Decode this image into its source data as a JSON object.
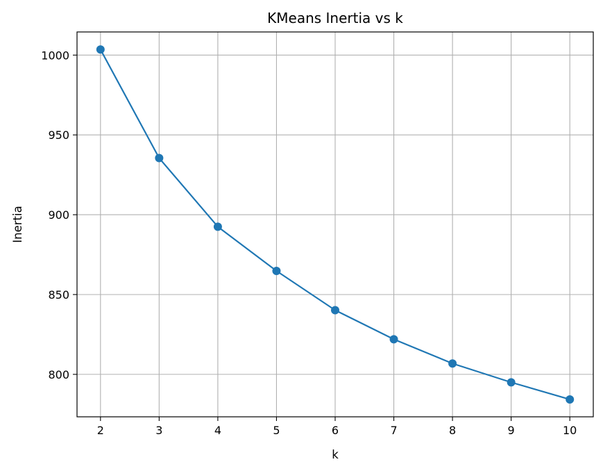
{
  "chart_data": {
    "type": "line",
    "title": "KMeans Inertia vs k",
    "xlabel": "k",
    "ylabel": "Inertia",
    "x": [
      2,
      3,
      4,
      5,
      6,
      7,
      8,
      9,
      10
    ],
    "series": [
      {
        "values": [
          1003.5,
          935.5,
          892.5,
          864.8,
          840.2,
          822.0,
          806.8,
          795.0,
          784.3
        ],
        "color": "#1f77b4",
        "marker": "circle"
      }
    ],
    "xlim": [
      1.6,
      10.4
    ],
    "ylim": [
      773.4,
      1014.5
    ],
    "xticks": [
      2,
      3,
      4,
      5,
      6,
      7,
      8,
      9,
      10
    ],
    "yticks": [
      800,
      850,
      900,
      950,
      1000
    ],
    "grid": true,
    "grid_color": "#b0b0b0",
    "axis_color": "#000000"
  }
}
